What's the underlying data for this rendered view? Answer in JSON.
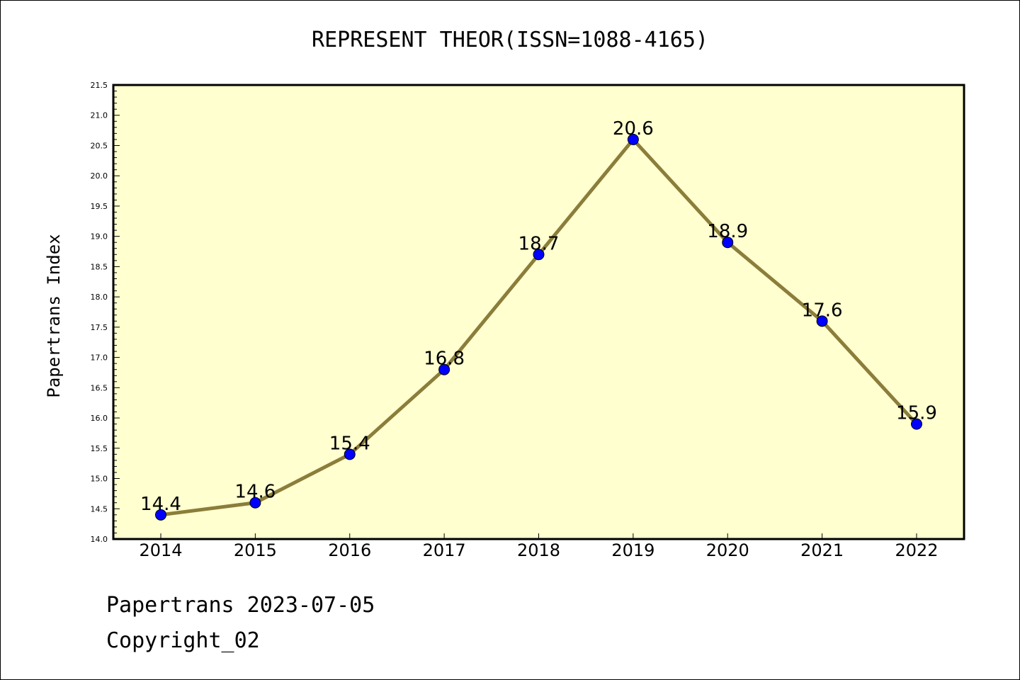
{
  "chart_data": {
    "type": "line",
    "title": "REPRESENT THEOR(ISSN=1088-4165)",
    "xlabel": "",
    "ylabel": "Papertrans Index",
    "categories": [
      "2014",
      "2015",
      "2016",
      "2017",
      "2018",
      "2019",
      "2020",
      "2021",
      "2022"
    ],
    "values": [
      14.4,
      14.6,
      15.4,
      16.8,
      18.7,
      20.6,
      18.9,
      17.6,
      15.9
    ],
    "data_labels": [
      "14.4",
      "14.6",
      "15.4",
      "16.8",
      "18.7",
      "20.6",
      "18.9",
      "17.6",
      "15.9"
    ],
    "ylim": [
      14.0,
      21.5
    ],
    "yticks": [
      "14.0",
      "14.5",
      "15.0",
      "15.5",
      "16.0",
      "16.5",
      "17.0",
      "17.5",
      "18.0",
      "18.5",
      "19.0",
      "19.5",
      "20.0",
      "20.5",
      "21.0",
      "21.5"
    ],
    "grid": false,
    "legend": "none",
    "colors": {
      "plot_background": "#ffffd0",
      "line": "#8b7d3a",
      "marker": "#0000ff"
    }
  },
  "footer": {
    "line1": "Papertrans 2023-07-05",
    "line2": "Copyright_02"
  }
}
